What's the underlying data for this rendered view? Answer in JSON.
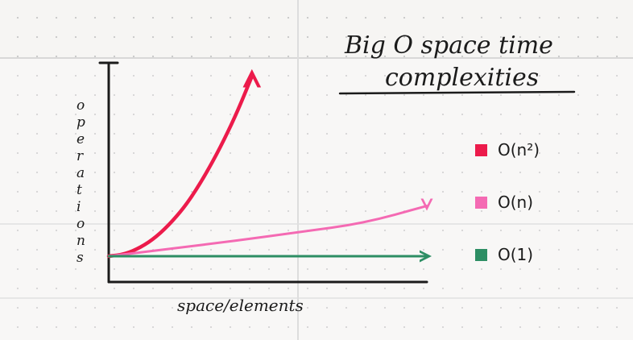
{
  "chart_data": {
    "type": "line",
    "title": "Big O space time complexities",
    "title_lines": [
      "Big O space time",
      "complexities"
    ],
    "xlabel": "space/elements",
    "ylabel": "operations",
    "grid": false,
    "legend_position": "right",
    "x": [
      0,
      1,
      2,
      3,
      4,
      5,
      6,
      7,
      8,
      9,
      10
    ],
    "xlim": [
      0,
      10
    ],
    "ylim": [
      0,
      100
    ],
    "series": [
      {
        "name": "O(n²)",
        "color": "#ec1b4b",
        "x": [
          0,
          0.5,
          1.0,
          1.5,
          2.0,
          2.5,
          3.0,
          3.5,
          4.0,
          4.5
        ],
        "values": [
          0,
          1,
          4.5,
          10,
          18,
          28,
          41,
          56,
          73,
          93
        ]
      },
      {
        "name": "O(n)",
        "color": "#f46ab3",
        "x": [
          0,
          2,
          4,
          6,
          8,
          10
        ],
        "values": [
          0,
          4,
          8,
          12.5,
          17,
          26
        ]
      },
      {
        "name": "O(1)",
        "color": "#2d8e64",
        "x": [
          0,
          10
        ],
        "values": [
          0,
          0
        ]
      }
    ]
  }
}
